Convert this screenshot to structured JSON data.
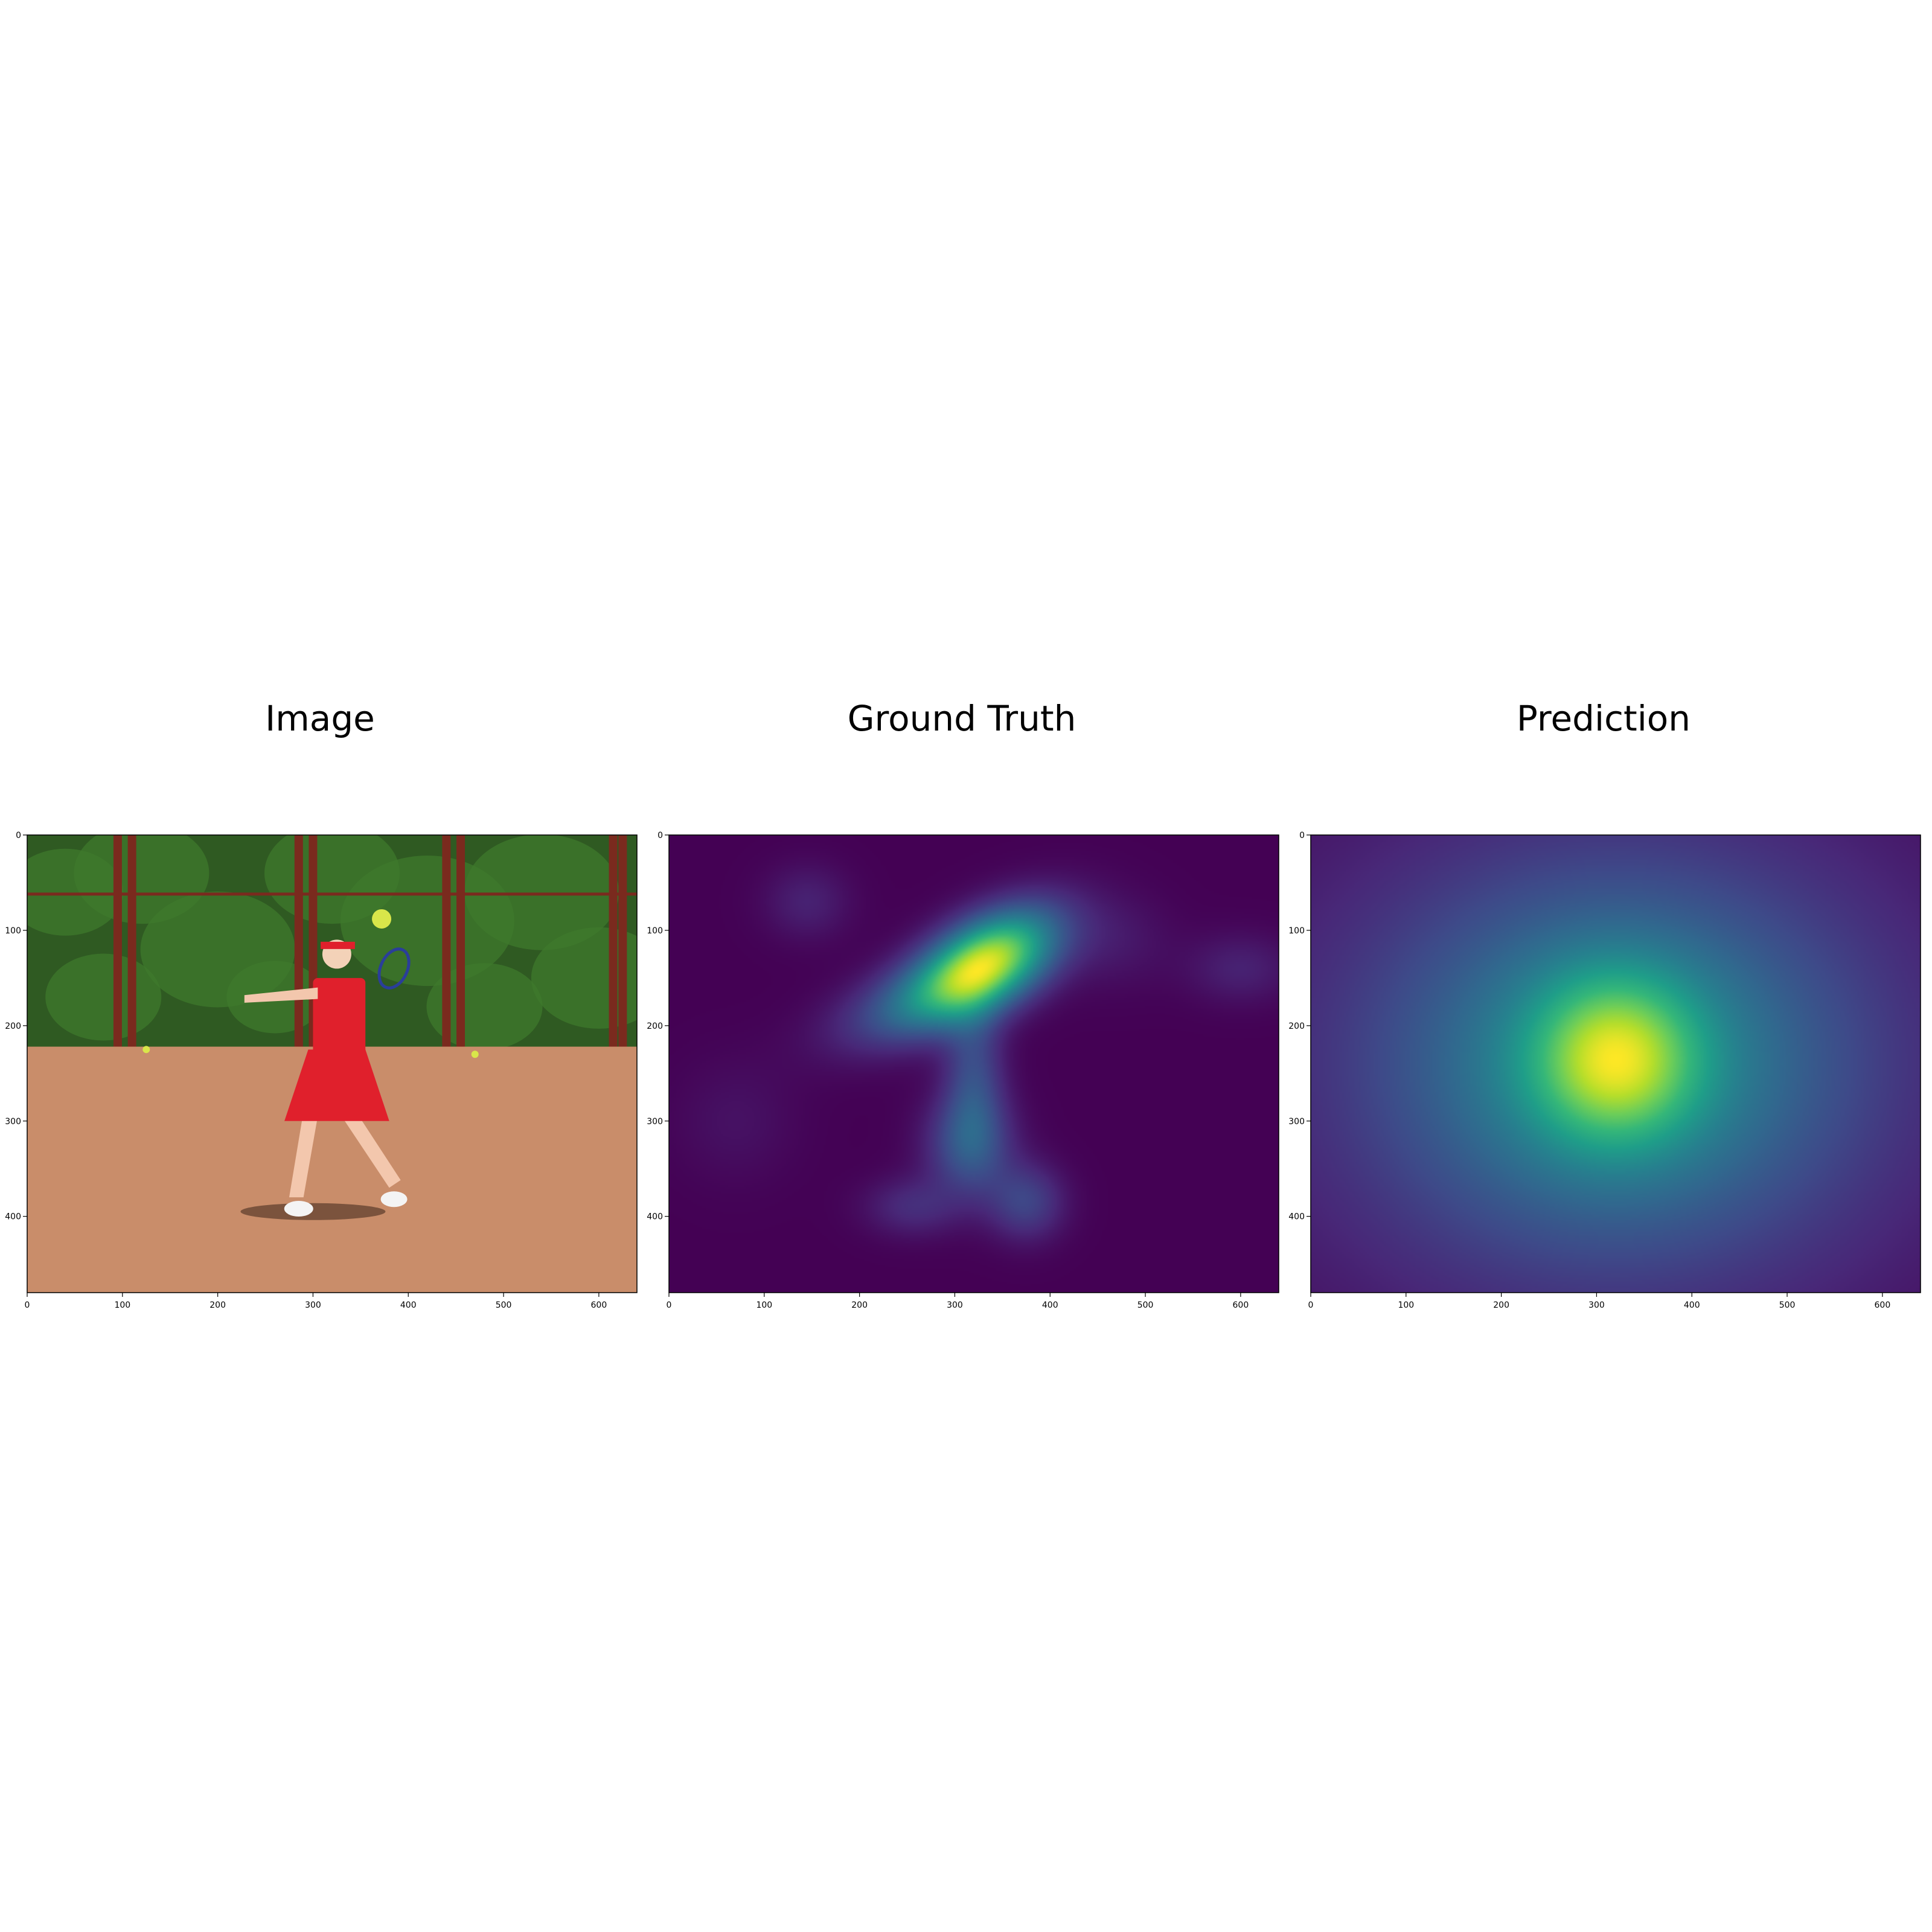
{
  "chart_data": [
    {
      "type": "image",
      "title": "Image",
      "scene": "girl in red outfit hitting a tennis ball on a clay court, green trees and dark red fence posts behind",
      "xlim": [
        0,
        640
      ],
      "ylim": [
        480,
        0
      ],
      "xticks": [
        0,
        100,
        200,
        300,
        400,
        500,
        600
      ],
      "yticks": [
        0,
        100,
        200,
        300,
        400
      ],
      "colors": {
        "clay": "#c98d6a",
        "foliage": "#2f5a22",
        "posts": "#7a2a1e",
        "outfit": "#e0202c",
        "ball": "#d9e64a"
      }
    },
    {
      "type": "heatmap",
      "title": "Ground Truth",
      "colormap": "viridis",
      "xlim": [
        0,
        640
      ],
      "ylim": [
        480,
        0
      ],
      "xticks": [
        0,
        100,
        200,
        300,
        400,
        500,
        600
      ],
      "yticks": [
        0,
        100,
        200,
        300,
        400
      ],
      "blobs": [
        {
          "x": 335,
          "y": 130,
          "sx": 55,
          "sy": 30,
          "rot": -30,
          "w": 1.0
        },
        {
          "x": 280,
          "y": 170,
          "sx": 70,
          "sy": 28,
          "rot": -20,
          "w": 0.45
        },
        {
          "x": 320,
          "y": 250,
          "sx": 22,
          "sy": 55,
          "rot": 0,
          "w": 0.28
        },
        {
          "x": 315,
          "y": 325,
          "sx": 32,
          "sy": 38,
          "rot": 0,
          "w": 0.33
        },
        {
          "x": 375,
          "y": 385,
          "sx": 28,
          "sy": 28,
          "rot": 0,
          "w": 0.26
        },
        {
          "x": 255,
          "y": 390,
          "sx": 35,
          "sy": 22,
          "rot": 0,
          "w": 0.16
        },
        {
          "x": 145,
          "y": 70,
          "sx": 32,
          "sy": 28,
          "rot": 0,
          "w": 0.12
        },
        {
          "x": 600,
          "y": 140,
          "sx": 40,
          "sy": 26,
          "rot": 0,
          "w": 0.12
        },
        {
          "x": 470,
          "y": 110,
          "sx": 40,
          "sy": 35,
          "rot": 0,
          "w": 0.08
        },
        {
          "x": 70,
          "y": 300,
          "sx": 45,
          "sy": 45,
          "rot": 0,
          "w": 0.06
        }
      ]
    },
    {
      "type": "heatmap",
      "title": "Prediction",
      "colormap": "viridis",
      "xlim": [
        0,
        640
      ],
      "ylim": [
        480,
        0
      ],
      "xticks": [
        0,
        100,
        200,
        300,
        400,
        500,
        600
      ],
      "yticks": [
        0,
        100,
        200,
        300,
        400
      ],
      "blobs": [
        {
          "x": 320,
          "y": 235,
          "sx": 58,
          "sy": 58,
          "rot": 0,
          "w": 0.58
        },
        {
          "x": 320,
          "y": 240,
          "sx": 165,
          "sy": 135,
          "rot": 0,
          "w": 0.42
        },
        {
          "x": 320,
          "y": 240,
          "sx": 330,
          "sy": 260,
          "rot": 0,
          "w": 0.16
        }
      ]
    }
  ]
}
